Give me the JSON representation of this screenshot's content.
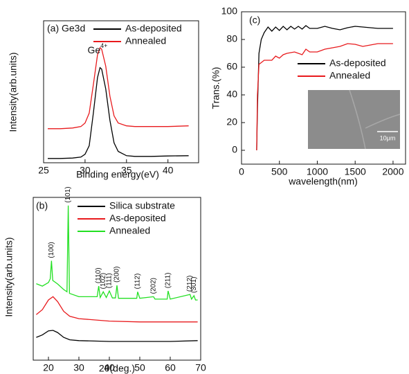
{
  "chart_data": [
    {
      "type": "line",
      "title": "(a) Ge3d",
      "annotation": {
        "text": "Ge",
        "superscript": "4+"
      },
      "xlabel": "Binding energy(eV)",
      "ylabel": "Intensity(arb.units)",
      "xlim": [
        25,
        43.7
      ],
      "xticks": [
        25,
        30,
        35,
        40
      ],
      "ylim": [
        0,
        100
      ],
      "series": [
        {
          "name": "As-deposited",
          "color": "#000000",
          "x": [
            25.5,
            27,
            28.5,
            29.5,
            30,
            30.5,
            31,
            31.5,
            31.8,
            32,
            32.5,
            33,
            33.5,
            34,
            35,
            36,
            38,
            40,
            42.5
          ],
          "values": [
            3,
            3,
            3.3,
            4,
            6,
            12,
            35,
            60,
            67,
            66,
            52,
            30,
            14,
            8,
            5,
            4.5,
            4.5,
            4.8,
            5
          ]
        },
        {
          "name": "Annealed",
          "color": "#e8191c",
          "x": [
            25.5,
            27,
            28.5,
            29.5,
            30,
            30.5,
            31,
            31.5,
            31.8,
            32,
            32.5,
            33,
            33.5,
            34,
            35,
            36,
            38,
            40,
            42.5
          ],
          "values": [
            24,
            24,
            24.5,
            25.5,
            28,
            35,
            55,
            76,
            81,
            80,
            68,
            47,
            33,
            28,
            26,
            25.5,
            25.5,
            25.5,
            26
          ]
        }
      ]
    },
    {
      "type": "line",
      "title": "(b)",
      "xlabel": "2θ(deg.)",
      "ylabel": "Intensity(arb.units)",
      "xlim": [
        15,
        70
      ],
      "xticks": [
        20,
        30,
        40,
        50,
        60,
        70
      ],
      "ylim": [
        0,
        100
      ],
      "series": [
        {
          "name": "Silica substrate",
          "color": "#000000",
          "x": [
            16,
            18,
            20,
            21.5,
            23,
            25,
            27,
            30,
            40,
            50,
            60,
            69
          ],
          "values": [
            14,
            15.5,
            18,
            18.3,
            17,
            14,
            12.5,
            12,
            11.5,
            11.5,
            11.5,
            12
          ]
        },
        {
          "name": "As-deposited",
          "color": "#e8191c",
          "x": [
            16,
            18,
            20,
            21.5,
            23,
            25,
            27,
            30,
            40,
            50,
            60,
            69
          ],
          "values": [
            28,
            31,
            37,
            39,
            36,
            30,
            27,
            25.5,
            24,
            23.5,
            23.5,
            23.5
          ]
        },
        {
          "name": "Annealed",
          "color": "#22e022",
          "x": [
            16,
            18,
            20,
            20.6,
            21,
            21.4,
            23,
            25,
            26.1,
            26.5,
            26.9,
            30,
            36,
            36.5,
            37,
            38,
            39,
            40,
            41,
            42,
            42.5,
            43,
            49,
            49.3,
            50,
            54.5,
            55,
            59,
            59.3,
            60,
            66.5,
            67,
            67.8,
            68.3,
            69
          ],
          "values": [
            47,
            45.5,
            47.7,
            50,
            61,
            49,
            46.8,
            43.4,
            42,
            95,
            41,
            39,
            39,
            45.5,
            38.5,
            42,
            38.5,
            42.5,
            38.2,
            38.2,
            46,
            38,
            38,
            42,
            38,
            39,
            37.5,
            37.5,
            42.5,
            37.5,
            40.4,
            37.5,
            39.6,
            37,
            37
          ]
        }
      ],
      "peak_labels": [
        {
          "text": "(100)",
          "x": 21
        },
        {
          "text": "(101)",
          "x": 26.5
        },
        {
          "text": "(110)",
          "x": 36.5
        },
        {
          "text": "(102)",
          "x": 38
        },
        {
          "text": "(111)",
          "x": 40
        },
        {
          "text": "(200)",
          "x": 42.5
        },
        {
          "text": "(112)",
          "x": 49.3
        },
        {
          "text": "(202)",
          "x": 54.5
        },
        {
          "text": "(211)",
          "x": 59.3
        },
        {
          "text": "(212)",
          "x": 66.5
        },
        {
          "text": "(301)",
          "x": 67.8
        }
      ]
    },
    {
      "type": "line",
      "title": "(c)",
      "xlabel": "wavelength(nm)",
      "ylabel": "Trans.(%)",
      "xlim": [
        0,
        2165
      ],
      "xticks": [
        0,
        500,
        1000,
        1500,
        2000
      ],
      "ylim": [
        -10,
        100
      ],
      "yticks": [
        0,
        20,
        40,
        60,
        80,
        100
      ],
      "inset_label": "10μm",
      "series": [
        {
          "name": "As-deposited",
          "color": "#000000",
          "x": [
            200,
            210,
            230,
            260,
            300,
            350,
            400,
            450,
            500,
            550,
            600,
            650,
            700,
            750,
            800,
            850,
            900,
            1000,
            1100,
            1200,
            1300,
            1400,
            1500,
            1600,
            1800,
            2000
          ],
          "values": [
            0,
            30,
            70,
            80,
            85,
            89,
            86,
            89,
            86.5,
            89.5,
            87,
            89.5,
            87.5,
            89.5,
            87.5,
            90,
            88,
            88,
            89.5,
            88,
            87,
            88.5,
            89.5,
            89,
            88,
            88
          ]
        },
        {
          "name": "Annealed",
          "color": "#e8191c",
          "x": [
            200,
            210,
            230,
            300,
            400,
            450,
            500,
            550,
            600,
            700,
            800,
            850,
            900,
            1000,
            1100,
            1200,
            1300,
            1400,
            1500,
            1600,
            1700,
            1800,
            1900,
            2000
          ],
          "values": [
            0,
            40,
            62,
            65,
            65,
            68,
            66.5,
            69,
            70,
            71,
            69,
            73,
            71,
            71,
            73,
            74,
            75,
            77,
            76.5,
            75,
            76,
            77,
            77,
            77
          ]
        }
      ]
    }
  ]
}
